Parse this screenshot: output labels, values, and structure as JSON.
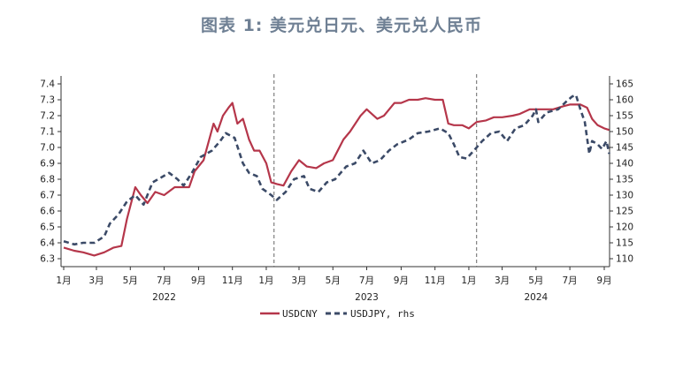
{
  "title": "图表 1:  美元兑日元、美元兑人民币",
  "chart_data": {
    "type": "line",
    "title": "图表 1:  美元兑日元、美元兑人民币",
    "x_ticks": [
      "1月",
      "3月",
      "5月",
      "7月",
      "9月",
      "11月",
      "1月",
      "3月",
      "5月",
      "7月",
      "9月",
      "11月",
      "1月",
      "3月",
      "5月",
      "7月",
      "9月"
    ],
    "years": [
      "2022",
      "2023",
      "2024"
    ],
    "y_left": {
      "ylim": [
        6.25,
        7.45
      ],
      "ticks": [
        6.3,
        6.4,
        6.5,
        6.6,
        6.7,
        6.8,
        6.9,
        7.0,
        7.1,
        7.2,
        7.3,
        7.4
      ]
    },
    "y_right": {
      "ylim": [
        107.5,
        167.5
      ],
      "ticks": [
        110,
        115,
        120,
        125,
        130,
        135,
        140,
        145,
        150,
        155,
        160,
        165
      ]
    },
    "vlines": [
      "2023-01",
      "2024-01"
    ],
    "legend_position": "bottom",
    "colors": {
      "usdcny": "#b5364a",
      "usdjpy": "#3b4a67"
    },
    "series": [
      {
        "name": "USDCNY",
        "axis": "left",
        "style": "solid",
        "points": [
          [
            "2022-01-01",
            6.37
          ],
          [
            "2022-01-20",
            6.35
          ],
          [
            "2022-02-05",
            6.34
          ],
          [
            "2022-02-25",
            6.32
          ],
          [
            "2022-03-15",
            6.34
          ],
          [
            "2022-04-01",
            6.37
          ],
          [
            "2022-04-15",
            6.38
          ],
          [
            "2022-04-25",
            6.55
          ],
          [
            "2022-05-10",
            6.75
          ],
          [
            "2022-05-20",
            6.7
          ],
          [
            "2022-06-01",
            6.65
          ],
          [
            "2022-06-15",
            6.72
          ],
          [
            "2022-07-01",
            6.7
          ],
          [
            "2022-07-20",
            6.75
          ],
          [
            "2022-08-01",
            6.75
          ],
          [
            "2022-08-15",
            6.75
          ],
          [
            "2022-08-25",
            6.85
          ],
          [
            "2022-09-10",
            6.92
          ],
          [
            "2022-09-28",
            7.15
          ],
          [
            "2022-10-05",
            7.1
          ],
          [
            "2022-10-15",
            7.2
          ],
          [
            "2022-10-25",
            7.25
          ],
          [
            "2022-11-01",
            7.28
          ],
          [
            "2022-11-10",
            7.15
          ],
          [
            "2022-11-20",
            7.18
          ],
          [
            "2022-12-01",
            7.05
          ],
          [
            "2022-12-10",
            6.98
          ],
          [
            "2022-12-20",
            6.98
          ],
          [
            "2023-01-01",
            6.9
          ],
          [
            "2023-01-10",
            6.78
          ],
          [
            "2023-01-20",
            6.77
          ],
          [
            "2023-02-01",
            6.76
          ],
          [
            "2023-02-15",
            6.85
          ],
          [
            "2023-03-01",
            6.92
          ],
          [
            "2023-03-15",
            6.88
          ],
          [
            "2023-04-01",
            6.87
          ],
          [
            "2023-04-15",
            6.9
          ],
          [
            "2023-05-01",
            6.92
          ],
          [
            "2023-05-20",
            7.05
          ],
          [
            "2023-06-01",
            7.1
          ],
          [
            "2023-06-20",
            7.2
          ],
          [
            "2023-07-01",
            7.24
          ],
          [
            "2023-07-20",
            7.18
          ],
          [
            "2023-08-01",
            7.2
          ],
          [
            "2023-08-20",
            7.28
          ],
          [
            "2023-09-01",
            7.28
          ],
          [
            "2023-09-15",
            7.3
          ],
          [
            "2023-10-01",
            7.3
          ],
          [
            "2023-10-15",
            7.31
          ],
          [
            "2023-11-01",
            7.3
          ],
          [
            "2023-11-15",
            7.3
          ],
          [
            "2023-11-25",
            7.15
          ],
          [
            "2023-12-05",
            7.14
          ],
          [
            "2023-12-20",
            7.14
          ],
          [
            "2024-01-01",
            7.12
          ],
          [
            "2024-01-15",
            7.16
          ],
          [
            "2024-02-01",
            7.17
          ],
          [
            "2024-02-15",
            7.19
          ],
          [
            "2024-03-01",
            7.19
          ],
          [
            "2024-03-20",
            7.2
          ],
          [
            "2024-04-01",
            7.21
          ],
          [
            "2024-04-20",
            7.24
          ],
          [
            "2024-05-01",
            7.24
          ],
          [
            "2024-05-20",
            7.24
          ],
          [
            "2024-06-01",
            7.24
          ],
          [
            "2024-06-20",
            7.26
          ],
          [
            "2024-07-01",
            7.27
          ],
          [
            "2024-07-20",
            7.27
          ],
          [
            "2024-08-01",
            7.25
          ],
          [
            "2024-08-10",
            7.18
          ],
          [
            "2024-08-20",
            7.14
          ],
          [
            "2024-09-01",
            7.12
          ],
          [
            "2024-09-10",
            7.11
          ]
        ]
      },
      {
        "name": "USDJPY, rhs",
        "axis": "right",
        "style": "dashed",
        "points": [
          [
            "2022-01-01",
            115.5
          ],
          [
            "2022-01-20",
            114.5
          ],
          [
            "2022-02-05",
            115.0
          ],
          [
            "2022-02-25",
            115.0
          ],
          [
            "2022-03-15",
            117.0
          ],
          [
            "2022-03-25",
            121.0
          ],
          [
            "2022-04-10",
            124.0
          ],
          [
            "2022-04-25",
            128.0
          ],
          [
            "2022-05-10",
            130.0
          ],
          [
            "2022-05-25",
            127.0
          ],
          [
            "2022-06-10",
            134.0
          ],
          [
            "2022-06-25",
            135.5
          ],
          [
            "2022-07-10",
            137.0
          ],
          [
            "2022-07-25",
            135.0
          ],
          [
            "2022-08-05",
            133.0
          ],
          [
            "2022-08-20",
            137.0
          ],
          [
            "2022-09-05",
            142.0
          ],
          [
            "2022-09-25",
            144.0
          ],
          [
            "2022-10-10",
            147.0
          ],
          [
            "2022-10-20",
            149.5
          ],
          [
            "2022-11-05",
            148.0
          ],
          [
            "2022-11-20",
            140.0
          ],
          [
            "2022-12-01",
            137.0
          ],
          [
            "2022-12-15",
            136.0
          ],
          [
            "2022-12-25",
            132.0
          ],
          [
            "2023-01-10",
            130.0
          ],
          [
            "2023-01-20",
            128.5
          ],
          [
            "2023-02-05",
            131.0
          ],
          [
            "2023-02-20",
            135.0
          ],
          [
            "2023-03-10",
            136.0
          ],
          [
            "2023-03-20",
            132.0
          ],
          [
            "2023-04-05",
            131.0
          ],
          [
            "2023-04-20",
            134.0
          ],
          [
            "2023-05-05",
            135.0
          ],
          [
            "2023-05-25",
            139.0
          ],
          [
            "2023-06-10",
            140.0
          ],
          [
            "2023-06-25",
            144.0
          ],
          [
            "2023-07-10",
            140.0
          ],
          [
            "2023-07-25",
            141.0
          ],
          [
            "2023-08-10",
            144.0
          ],
          [
            "2023-08-25",
            146.0
          ],
          [
            "2023-09-15",
            147.5
          ],
          [
            "2023-10-01",
            149.5
          ],
          [
            "2023-10-20",
            150.0
          ],
          [
            "2023-11-10",
            151.0
          ],
          [
            "2023-11-25",
            149.5
          ],
          [
            "2023-12-05",
            146.0
          ],
          [
            "2023-12-15",
            142.0
          ],
          [
            "2023-12-28",
            141.5
          ],
          [
            "2024-01-10",
            144.0
          ],
          [
            "2024-01-25",
            147.0
          ],
          [
            "2024-02-10",
            149.5
          ],
          [
            "2024-02-25",
            150.0
          ],
          [
            "2024-03-10",
            147.0
          ],
          [
            "2024-03-25",
            151.0
          ],
          [
            "2024-04-10",
            152.0
          ],
          [
            "2024-04-25",
            155.0
          ],
          [
            "2024-05-01",
            157.0
          ],
          [
            "2024-05-05",
            153.0
          ],
          [
            "2024-05-20",
            156.0
          ],
          [
            "2024-06-10",
            157.0
          ],
          [
            "2024-06-25",
            159.5
          ],
          [
            "2024-07-05",
            161.0
          ],
          [
            "2024-07-12",
            161.5
          ],
          [
            "2024-07-20",
            157.0
          ],
          [
            "2024-07-28",
            153.0
          ],
          [
            "2024-08-05",
            143.0
          ],
          [
            "2024-08-10",
            147.0
          ],
          [
            "2024-08-20",
            146.0
          ],
          [
            "2024-08-28",
            144.5
          ],
          [
            "2024-09-05",
            147.0
          ],
          [
            "2024-09-10",
            143.0
          ]
        ]
      }
    ]
  }
}
